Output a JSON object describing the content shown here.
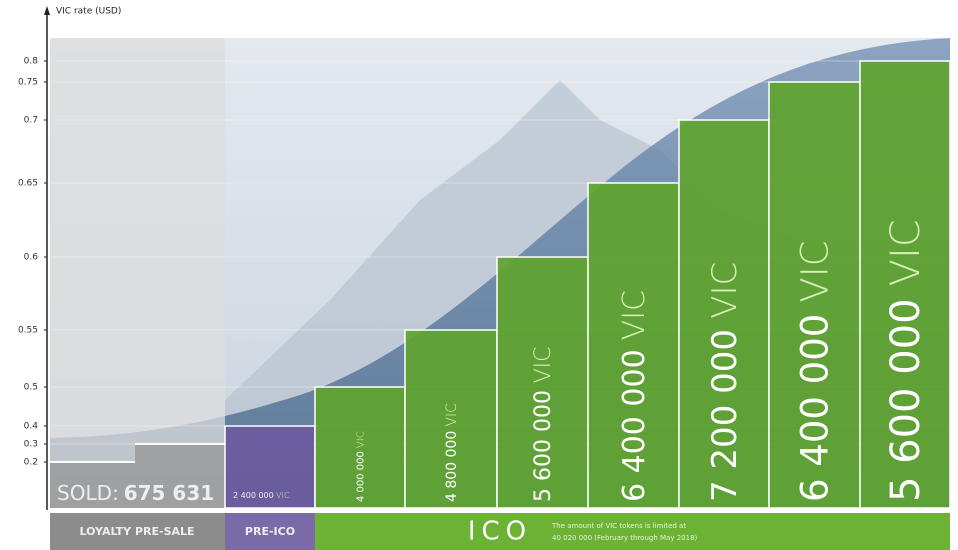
{
  "chart_data": {
    "type": "step-bar",
    "y_label": "VIC rate (USD)",
    "ylim": [
      0.2,
      0.8
    ],
    "yticks": [
      0.2,
      0.3,
      0.4,
      0.5,
      0.55,
      0.6,
      0.65,
      0.7,
      0.75,
      0.8
    ],
    "grid": true,
    "values": [
      0.2,
      0.3,
      0.4,
      0.5,
      0.55,
      0.6,
      0.65,
      0.7,
      0.75,
      0.8
    ],
    "colors": [
      "#9a9a9a",
      "#9a9a9a",
      "#6b5a9e",
      "#5ea42e",
      "#5ea42e",
      "#5ea42e",
      "#5ea42e",
      "#5ea42e",
      "#5ea42e",
      "#5ea42e"
    ],
    "token_amounts": [
      null,
      null,
      "2 400 000",
      "4 000 000",
      "4 800 000",
      "5 600 000",
      "6 400 000",
      "7 200 000",
      "6 400 000",
      "5 600 000"
    ],
    "token_unit": "VIC",
    "sold_label": "SOLD:",
    "sold_amount": "675 631",
    "phases": [
      "LOYALTY PRE-SALE",
      "PRE-ICO",
      "ICO"
    ],
    "note": [
      "The amount of VIC tokens is limited at",
      "40 020 000 (February through May 2018)"
    ]
  }
}
